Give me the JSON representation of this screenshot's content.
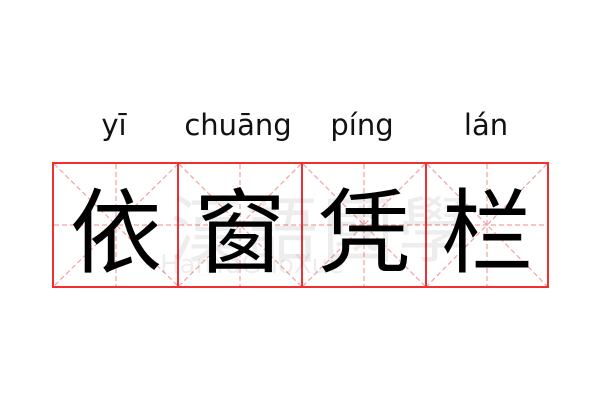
{
  "words": [
    {
      "pinyin": "yī",
      "hanzi": "依"
    },
    {
      "pinyin": "chuāng",
      "hanzi": "窗"
    },
    {
      "pinyin": "píng",
      "hanzi": "凭"
    },
    {
      "pinyin": "lán",
      "hanzi": "栏"
    }
  ],
  "watermark": {
    "chinese": "漢語國學",
    "latin": "HanYuGuoXue"
  },
  "colors": {
    "border": "#f03030",
    "guide": "#f5a0a0",
    "text": "#000000"
  }
}
